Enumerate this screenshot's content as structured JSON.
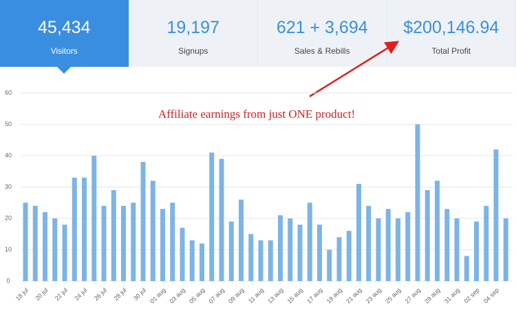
{
  "stats": [
    {
      "value": "45,434",
      "label": "Visitors"
    },
    {
      "value": "19,197",
      "label": "Signups"
    },
    {
      "value": "621 + 3,694",
      "label": "Sales & Rebills"
    },
    {
      "value": "$200,146.94",
      "label": "Total Profit"
    }
  ],
  "chart_data": {
    "type": "bar",
    "annotation": "Affiliate earnings from just ONE product!",
    "categories": [
      "18 jul",
      null,
      "20 jul",
      null,
      "22 jul",
      null,
      "24 jul",
      null,
      "26 jul",
      null,
      "28 jul",
      null,
      "30 jul",
      null,
      "01 aug",
      null,
      "03 aug",
      null,
      "05 aug",
      null,
      "07 aug",
      null,
      "09 aug",
      null,
      "11 aug",
      null,
      "13 aug",
      null,
      "15 aug",
      null,
      "17 aug",
      null,
      "19 aug",
      null,
      "21 aug",
      null,
      "23 aug",
      null,
      "25 aug",
      null,
      "27 aug",
      null,
      "29 aug",
      null,
      "31 aug",
      null,
      "02 sep",
      null,
      "04 sep",
      null
    ],
    "values": [
      25,
      24,
      22,
      20,
      18,
      33,
      33,
      40,
      24,
      29,
      24,
      25,
      38,
      32,
      23,
      25,
      17,
      13,
      12,
      41,
      39,
      19,
      26,
      15,
      13,
      13,
      21,
      20,
      18,
      25,
      18,
      10,
      14,
      16,
      31,
      24,
      20,
      23,
      20,
      22,
      50,
      29,
      32,
      23,
      20,
      8,
      19,
      24,
      42,
      20
    ],
    "color": "#7db4e6",
    "ylim": [
      0,
      60
    ],
    "yticks": [
      0,
      10,
      20,
      30,
      40,
      50,
      60
    ],
    "grid": true
  }
}
